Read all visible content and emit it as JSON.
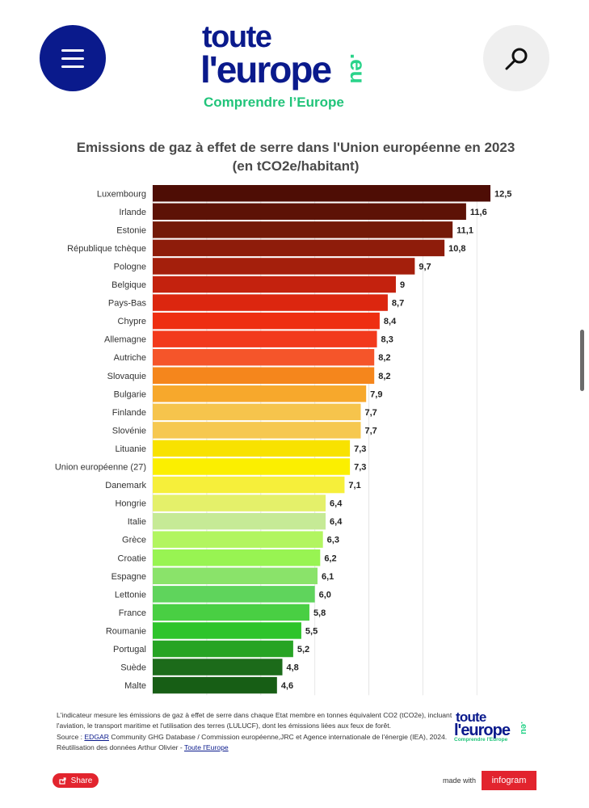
{
  "header": {
    "logo_line1": "toute",
    "logo_line2": "l'europe",
    "logo_eu": ".eu",
    "tagline": "Comprendre l’Europe"
  },
  "chart_data": {
    "type": "bar",
    "orientation": "horizontal",
    "title": "Emissions de gaz à effet de serre dans l'Union européenne en 2023",
    "subtitle": "(en tCO2e/habitant)",
    "xlim": [
      0,
      12.5
    ],
    "categories": [
      "Luxembourg",
      "Irlande",
      "Estonie",
      "République tchèque",
      "Pologne",
      "Belgique",
      "Pays-Bas",
      "Chypre",
      "Allemagne",
      "Autriche",
      "Slovaquie",
      "Bulgarie",
      "Finlande",
      "Slovénie",
      "Lituanie",
      "Union européenne (27)",
      "Danemark",
      "Hongrie",
      "Italie",
      "Grèce",
      "Croatie",
      "Espagne",
      "Lettonie",
      "France",
      "Roumanie",
      "Portugal",
      "Suède",
      "Malte"
    ],
    "values": [
      12.5,
      11.6,
      11.1,
      10.8,
      9.7,
      9,
      8.7,
      8.4,
      8.3,
      8.2,
      8.2,
      7.9,
      7.7,
      7.7,
      7.3,
      7.3,
      7.1,
      6.4,
      6.4,
      6.3,
      6.2,
      6.1,
      6.0,
      5.8,
      5.5,
      5.2,
      4.8,
      4.6
    ],
    "value_labels": [
      "12,5",
      "11,6",
      "11,1",
      "10,8",
      "9,7",
      "9",
      "8,7",
      "8,4",
      "8,3",
      "8,2",
      "8,2",
      "7,9",
      "7,7",
      "7,7",
      "7,3",
      "7,3",
      "7,1",
      "6,4",
      "6,4",
      "6,3",
      "6,2",
      "6,1",
      "6,0",
      "5,8",
      "5,5",
      "5,2",
      "4,8",
      "4,6"
    ],
    "colors": [
      "#4e0d05",
      "#5d1206",
      "#741a08",
      "#8e1c0a",
      "#a41f0c",
      "#c4220e",
      "#dc260f",
      "#ee2e11",
      "#f23a1d",
      "#f5552a",
      "#f5861c",
      "#f7a82c",
      "#f6c44c",
      "#f6c850",
      "#f8e200",
      "#fbef00",
      "#f6ef3a",
      "#e4f06a",
      "#c6ea96",
      "#b2f560",
      "#98f452",
      "#8ae36a",
      "#5fd45c",
      "#49cf43",
      "#2ec42b",
      "#27a424",
      "#1c6b1a",
      "#175e15"
    ],
    "grid": true
  },
  "footnote": {
    "text1": "L'indicateur mesure les émissions de gaz à effet de serre dans chaque Etat membre en tonnes équivalent CO2 (tCO2e), incluant l'aviation, le transport maritime et l'utilisation des terres (LULUCF), dont les émissions liées aux feux de forêt.",
    "source_prefix": "Source : ",
    "source_link": "EDGAR",
    "source_text": " Community GHG Database / Commission européenne,JRC et Agence internationale de l'énergie (IEA), 2024. Réutilisation des données Arthur Olivier - ",
    "author_link": "Toute l'Europe"
  },
  "footer": {
    "share_label": "Share",
    "made_with": "made with",
    "infogram_label": "infogram",
    "mini_logo_line1": "toute",
    "mini_logo_line2": "l'europe",
    "mini_logo_eu": ".eu",
    "mini_logo_tagline": "Comprendre l'Europe"
  }
}
